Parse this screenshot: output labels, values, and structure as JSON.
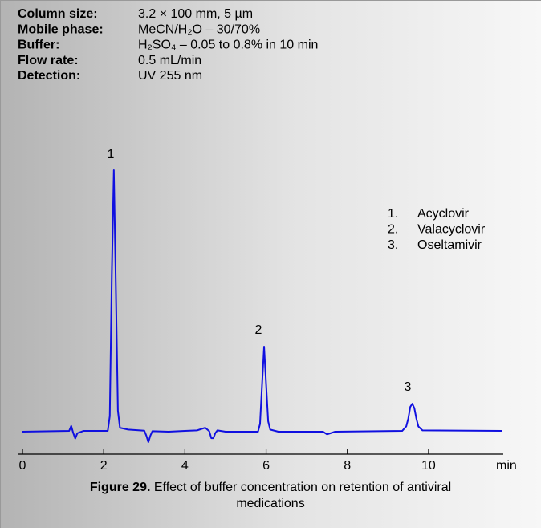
{
  "chart_data": {
    "type": "line",
    "conditions": [
      {
        "label": "Column size:",
        "value": "3.2 × 100 mm, 5 µm"
      },
      {
        "label": "Mobile phase:",
        "value": "MeCN/H₂O – 30/70%"
      },
      {
        "label": "Buffer:",
        "value": "H₂SO₄ – 0.05 to 0.8% in 10 min"
      },
      {
        "label": "Flow rate:",
        "value": "0.5 mL/min"
      },
      {
        "label": "Detection:",
        "value": "UV 255 nm"
      }
    ],
    "peak_labels": [
      "1",
      "2",
      "3"
    ],
    "compounds": [
      {
        "number": "1.",
        "name": "Acyclovir"
      },
      {
        "number": "2.",
        "name": "Valacyclovir"
      },
      {
        "number": "3.",
        "name": "Oseltamivir"
      }
    ],
    "x_label": "min",
    "caption": {
      "label": "Figure 29.",
      "text": "Effect of buffer concentration on retention of antiviral",
      "text2": "medications"
    },
    "series": [
      {
        "color": "#1010e0",
        "x": [
          0,
          1.15,
          1.2,
          1.25,
          1.3,
          1.35,
          1.5,
          2.1,
          2.15,
          2.2,
          2.25,
          2.3,
          2.35,
          2.4,
          2.6,
          3.0,
          3.05,
          3.1,
          3.15,
          3.2,
          3.6,
          4.0,
          4.3,
          4.5,
          4.6,
          4.65,
          4.7,
          4.75,
          4.8,
          5.0,
          5.8,
          5.85,
          5.9,
          5.95,
          6.0,
          6.05,
          6.1,
          6.3,
          7.4,
          7.5,
          7.6,
          7.7,
          9.35,
          9.45,
          9.5,
          9.55,
          9.6,
          9.65,
          9.7,
          9.75,
          9.85,
          11.8
        ],
        "values": [
          0,
          0.3,
          2.2,
          -0.5,
          -2.6,
          -0.6,
          0.3,
          0.3,
          6,
          60,
          100,
          55,
          8,
          1.5,
          0.8,
          0.4,
          -1.5,
          -4,
          -1.5,
          0.2,
          0,
          0.3,
          0.5,
          1.5,
          0.2,
          -2.5,
          -2.5,
          -0.5,
          0.5,
          0,
          0,
          3,
          18,
          32.5,
          18,
          4,
          0.8,
          0,
          0,
          -1,
          -0.5,
          0,
          0.3,
          2,
          5,
          9.5,
          10.7,
          9,
          5,
          2,
          0.5,
          0.3
        ]
      }
    ],
    "xlim": [
      0,
      11.8
    ],
    "ylim": [
      -10,
      102
    ],
    "xticks": [
      0,
      2,
      4,
      6,
      8,
      10
    ]
  }
}
